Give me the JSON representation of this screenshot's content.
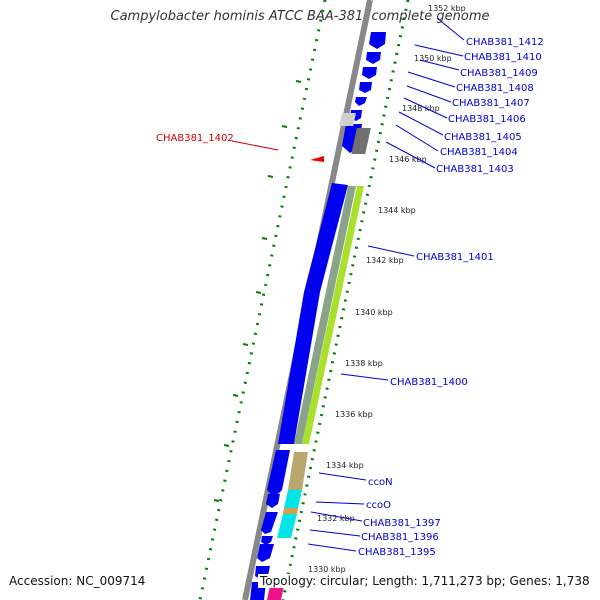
{
  "title": "Campylobacter hominis ATCC BAA-381, complete genome",
  "footer": {
    "accession": "Accession: NC_009714",
    "summary": "Topology: circular; Length: 1,711,273 bp; Genes: 1,738"
  },
  "colors": {
    "gene_label": "#0000cc",
    "highlight_label": "#cc0000",
    "cds_forward": "#0000ee",
    "tick_dots": "#008000",
    "backbone": "#888888"
  },
  "kbp_ticks": [
    "1352 kbp",
    "1350 kbp",
    "1348 kbp",
    "1346 kbp",
    "1344 kbp",
    "1342 kbp",
    "1340 kbp",
    "1338 kbp",
    "1336 kbp",
    "1334 kbp",
    "1332 kbp",
    "1330 kbp"
  ],
  "gene_labels": [
    "CHAB381_1412",
    "CHAB381_1410",
    "CHAB381_1409",
    "CHAB381_1408",
    "CHAB381_1407",
    "CHAB381_1406",
    "CHAB381_1405",
    "CHAB381_1404",
    "CHAB381_1403",
    "CHAB381_1401",
    "CHAB381_1400",
    "ccoN",
    "ccoO",
    "CHAB381_1397",
    "CHAB381_1396",
    "CHAB381_1395"
  ],
  "highlight_label": "CHAB381_1402"
}
